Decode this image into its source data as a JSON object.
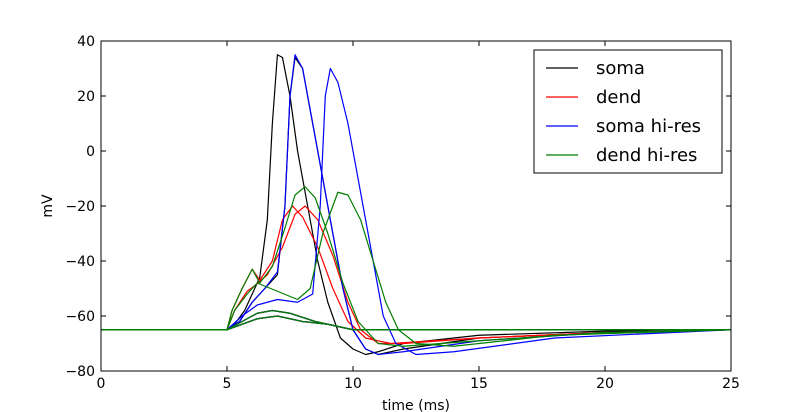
{
  "chart_data": {
    "type": "line",
    "title": "",
    "xlabel": "time (ms)",
    "ylabel": "mV",
    "xlim": [
      0,
      25
    ],
    "ylim": [
      -80,
      40
    ],
    "xticks": [
      0,
      5,
      10,
      15,
      20,
      25
    ],
    "yticks": [
      -80,
      -60,
      -40,
      -20,
      0,
      20,
      40
    ],
    "grid": false,
    "legend_position": "top-right",
    "series": [
      {
        "name": "soma",
        "color": "#000000",
        "traces": [
          [
            [
              0,
              -65
            ],
            [
              5,
              -65
            ],
            [
              5.3,
              -63
            ],
            [
              5.7,
              -58
            ],
            [
              6,
              -52
            ],
            [
              6.3,
              -46
            ],
            [
              6.6,
              -25
            ],
            [
              6.8,
              10
            ],
            [
              7,
              35
            ],
            [
              7.2,
              34
            ],
            [
              7.5,
              20
            ],
            [
              7.8,
              0
            ],
            [
              8.2,
              -20
            ],
            [
              8.6,
              -40
            ],
            [
              9,
              -55
            ],
            [
              9.5,
              -68
            ],
            [
              10,
              -72
            ],
            [
              10.5,
              -74
            ],
            [
              11,
              -73
            ],
            [
              12,
              -70
            ],
            [
              15,
              -67
            ],
            [
              20,
              -65.5
            ],
            [
              25,
              -65
            ]
          ],
          [
            [
              0,
              -65
            ],
            [
              5,
              -65
            ],
            [
              5.5,
              -62
            ],
            [
              6,
              -55
            ],
            [
              6.5,
              -50
            ],
            [
              7,
              -45
            ],
            [
              7.3,
              -20
            ],
            [
              7.5,
              20
            ],
            [
              7.7,
              34
            ],
            [
              8,
              30
            ],
            [
              8.4,
              10
            ],
            [
              8.8,
              -10
            ],
            [
              9.2,
              -30
            ],
            [
              9.6,
              -50
            ],
            [
              10,
              -65
            ],
            [
              10.5,
              -72
            ],
            [
              11,
              -74
            ],
            [
              12,
              -72
            ],
            [
              15,
              -68
            ],
            [
              20,
              -66
            ],
            [
              25,
              -65
            ]
          ],
          [
            [
              0,
              -65
            ],
            [
              5,
              -65
            ],
            [
              5.6,
              -62
            ],
            [
              6.2,
              -59
            ],
            [
              6.8,
              -58
            ],
            [
              7.5,
              -59
            ],
            [
              8.5,
              -62
            ],
            [
              10,
              -65
            ],
            [
              25,
              -65
            ]
          ],
          [
            [
              0,
              -65
            ],
            [
              5,
              -65
            ],
            [
              5.6,
              -63
            ],
            [
              6.2,
              -61
            ],
            [
              7,
              -60
            ],
            [
              8,
              -62
            ],
            [
              9,
              -63
            ],
            [
              10,
              -65
            ],
            [
              25,
              -65
            ]
          ]
        ]
      },
      {
        "name": "dend",
        "color": "#ff0000",
        "traces": [
          [
            [
              0,
              -65
            ],
            [
              5,
              -65
            ],
            [
              5.2,
              -58
            ],
            [
              5.6,
              -50
            ],
            [
              6,
              -43
            ],
            [
              6.3,
              -47
            ],
            [
              6.8,
              -40
            ],
            [
              7.2,
              -25
            ],
            [
              7.6,
              -20
            ],
            [
              8,
              -24
            ],
            [
              8.6,
              -35
            ],
            [
              9.2,
              -50
            ],
            [
              9.8,
              -62
            ],
            [
              10.5,
              -68
            ],
            [
              11.5,
              -70
            ],
            [
              15,
              -68
            ],
            [
              20,
              -66
            ],
            [
              25,
              -65
            ]
          ],
          [
            [
              0,
              -65
            ],
            [
              5,
              -65
            ],
            [
              5.3,
              -58
            ],
            [
              5.8,
              -51
            ],
            [
              6.1,
              -49
            ],
            [
              6.6,
              -45
            ],
            [
              7.2,
              -35
            ],
            [
              7.7,
              -23
            ],
            [
              8.1,
              -20
            ],
            [
              8.6,
              -25
            ],
            [
              9.2,
              -38
            ],
            [
              9.8,
              -55
            ],
            [
              10.3,
              -65
            ],
            [
              11,
              -70
            ],
            [
              12,
              -70
            ],
            [
              15,
              -68
            ],
            [
              20,
              -66
            ],
            [
              25,
              -65
            ]
          ],
          [
            [
              0,
              -65
            ],
            [
              5,
              -65
            ],
            [
              5.6,
              -62
            ],
            [
              6.2,
              -59
            ],
            [
              6.8,
              -58
            ],
            [
              7.5,
              -59
            ],
            [
              8.5,
              -62
            ],
            [
              10,
              -65
            ],
            [
              25,
              -65
            ]
          ],
          [
            [
              0,
              -65
            ],
            [
              5,
              -65
            ],
            [
              5.6,
              -63
            ],
            [
              6.2,
              -61
            ],
            [
              7,
              -60
            ],
            [
              8,
              -62
            ],
            [
              9,
              -63
            ],
            [
              10,
              -65
            ],
            [
              25,
              -65
            ]
          ]
        ]
      },
      {
        "name": "soma hi-res",
        "color": "#0000ff",
        "traces": [
          [
            [
              0,
              -65
            ],
            [
              5,
              -65
            ],
            [
              5.5,
              -62
            ],
            [
              6,
              -55
            ],
            [
              6.5,
              -50
            ],
            [
              7,
              -44
            ],
            [
              7.3,
              -20
            ],
            [
              7.5,
              20
            ],
            [
              7.7,
              35
            ],
            [
              8,
              30
            ],
            [
              8.4,
              10
            ],
            [
              8.8,
              -10
            ],
            [
              9.2,
              -30
            ],
            [
              9.6,
              -50
            ],
            [
              10,
              -65
            ],
            [
              10.5,
              -72
            ],
            [
              11,
              -74
            ],
            [
              12,
              -73
            ],
            [
              15,
              -69
            ],
            [
              20,
              -66
            ],
            [
              25,
              -65
            ]
          ],
          [
            [
              0,
              -65
            ],
            [
              5,
              -65
            ],
            [
              5.6,
              -60
            ],
            [
              6.2,
              -56
            ],
            [
              7,
              -54
            ],
            [
              7.8,
              -55
            ],
            [
              8.4,
              -52
            ],
            [
              8.7,
              -20
            ],
            [
              8.9,
              20
            ],
            [
              9.1,
              30
            ],
            [
              9.4,
              25
            ],
            [
              9.8,
              10
            ],
            [
              10.3,
              -15
            ],
            [
              10.8,
              -40
            ],
            [
              11.2,
              -60
            ],
            [
              11.7,
              -70
            ],
            [
              12.5,
              -74
            ],
            [
              14,
              -73
            ],
            [
              18,
              -68
            ],
            [
              25,
              -65
            ]
          ],
          [
            [
              0,
              -65
            ],
            [
              5,
              -65
            ],
            [
              5.6,
              -62
            ],
            [
              6.2,
              -59
            ],
            [
              6.8,
              -58
            ],
            [
              7.5,
              -59
            ],
            [
              8.5,
              -62
            ],
            [
              10,
              -65
            ],
            [
              25,
              -65
            ]
          ],
          [
            [
              0,
              -65
            ],
            [
              5,
              -65
            ],
            [
              5.6,
              -63
            ],
            [
              6.2,
              -61
            ],
            [
              7,
              -60
            ],
            [
              8,
              -62
            ],
            [
              9,
              -63
            ],
            [
              10,
              -65
            ],
            [
              25,
              -65
            ]
          ]
        ]
      },
      {
        "name": "dend hi-res",
        "color": "#007f00",
        "traces": [
          [
            [
              0,
              -65
            ],
            [
              5,
              -65
            ],
            [
              5.2,
              -58
            ],
            [
              5.6,
              -50
            ],
            [
              6,
              -43
            ],
            [
              6.3,
              -48
            ],
            [
              6.8,
              -42
            ],
            [
              7.3,
              -28
            ],
            [
              7.7,
              -16
            ],
            [
              8.1,
              -13
            ],
            [
              8.5,
              -17
            ],
            [
              9,
              -30
            ],
            [
              9.6,
              -48
            ],
            [
              10.2,
              -62
            ],
            [
              11,
              -70
            ],
            [
              12,
              -71
            ],
            [
              15,
              -69
            ],
            [
              20,
              -66
            ],
            [
              25,
              -65
            ]
          ],
          [
            [
              0,
              -65
            ],
            [
              5,
              -65
            ],
            [
              5.3,
              -58
            ],
            [
              5.8,
              -52
            ],
            [
              6.2,
              -48
            ],
            [
              7,
              -51
            ],
            [
              7.8,
              -54
            ],
            [
              8.3,
              -50
            ],
            [
              8.8,
              -30
            ],
            [
              9.4,
              -15
            ],
            [
              9.8,
              -16
            ],
            [
              10.3,
              -25
            ],
            [
              10.8,
              -40
            ],
            [
              11.3,
              -55
            ],
            [
              11.8,
              -65
            ],
            [
              12.5,
              -70
            ],
            [
              14,
              -71
            ],
            [
              18,
              -67
            ],
            [
              25,
              -65
            ]
          ],
          [
            [
              0,
              -65
            ],
            [
              5,
              -65
            ],
            [
              5.6,
              -62
            ],
            [
              6.2,
              -59
            ],
            [
              6.8,
              -58
            ],
            [
              7.5,
              -59
            ],
            [
              8.5,
              -62
            ],
            [
              10,
              -65
            ],
            [
              25,
              -65
            ]
          ],
          [
            [
              0,
              -65
            ],
            [
              5,
              -65
            ],
            [
              5.6,
              -63
            ],
            [
              6.2,
              -61
            ],
            [
              7,
              -60
            ],
            [
              8,
              -62
            ],
            [
              9,
              -63
            ],
            [
              10,
              -65
            ],
            [
              25,
              -65
            ]
          ]
        ]
      }
    ]
  }
}
